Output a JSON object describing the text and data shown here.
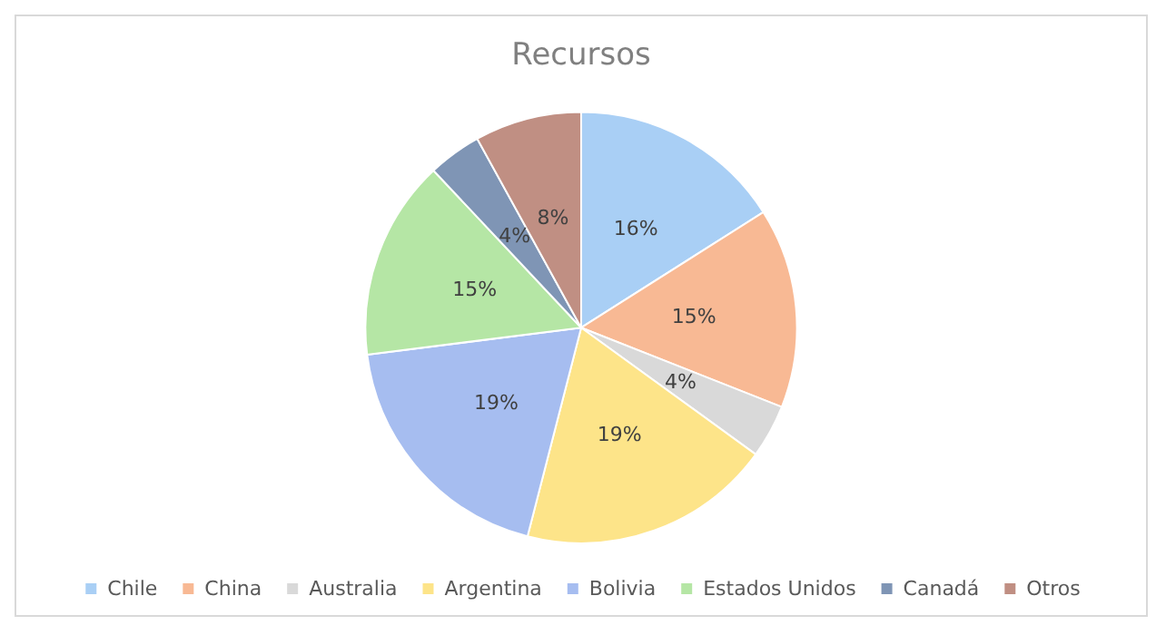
{
  "chart_data": {
    "type": "pie",
    "title": "Recursos",
    "categories": [
      "Chile",
      "China",
      "Australia",
      "Argentina",
      "Bolivia",
      "Estados Unidos",
      "Canadá",
      "Otros"
    ],
    "values": [
      16,
      15,
      4,
      19,
      19,
      15,
      4,
      8
    ],
    "colors": [
      "#a9cff5",
      "#f8b994",
      "#d9d9d9",
      "#fde489",
      "#a6bdf0",
      "#b5e6a5",
      "#7f95b5",
      "#c08f83"
    ],
    "value_labels": [
      "16%",
      "15%",
      "4%",
      "19%",
      "19%",
      "15%",
      "4%",
      "8%"
    ],
    "legend": "bottom"
  }
}
